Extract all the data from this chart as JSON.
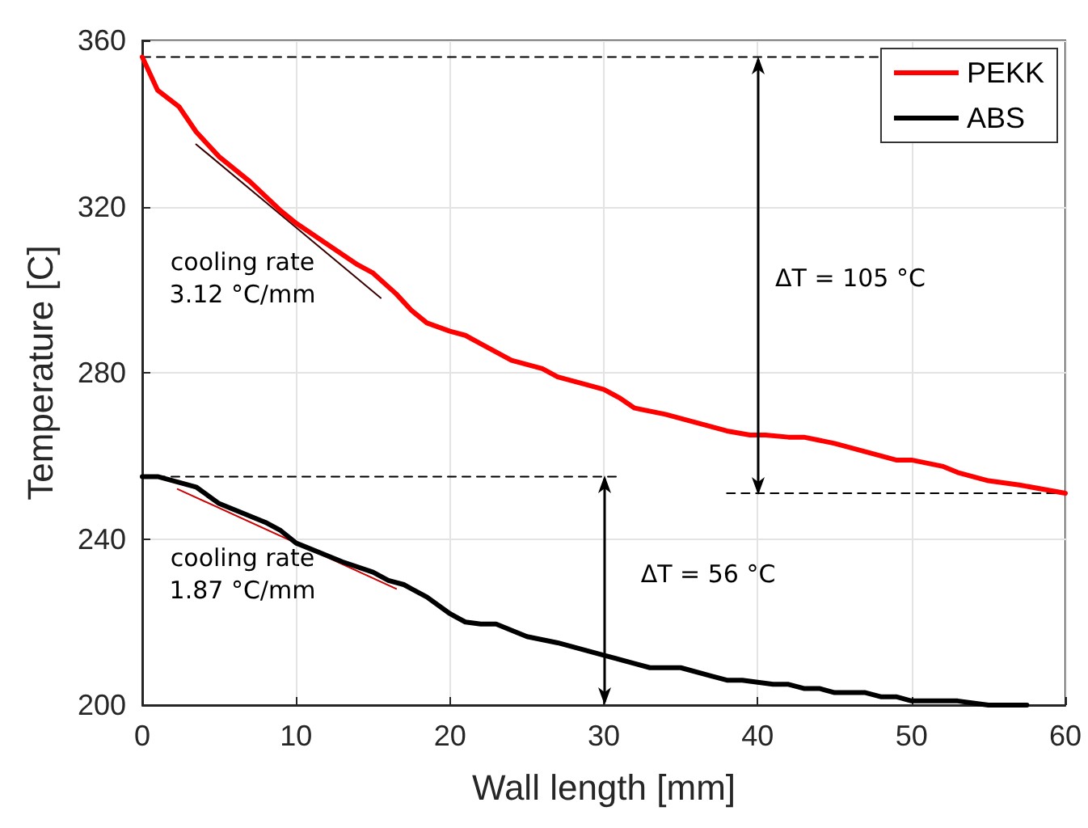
{
  "chart_data": {
    "type": "line",
    "xlabel": "Wall length [mm]",
    "ylabel": "Temperature [C]",
    "xlim": [
      0,
      60
    ],
    "xticks": [
      0,
      10,
      20,
      30,
      40,
      50,
      60
    ],
    "ylim": [
      200,
      360
    ],
    "yticks": [
      200,
      240,
      280,
      320,
      360
    ],
    "grid": true,
    "legend": "top right",
    "series": [
      {
        "name": "PEKK",
        "color": "#ff0000",
        "x": [
          0,
          1,
          2.4,
          3.5,
          5,
          7,
          9,
          10,
          12,
          14,
          15,
          16.5,
          17.5,
          18.5,
          20,
          21,
          22,
          24,
          26,
          27,
          29,
          30,
          31,
          32,
          34,
          36,
          38,
          39.5,
          40.5,
          42,
          43,
          45,
          47,
          49,
          50,
          52,
          53,
          55,
          57,
          60
        ],
        "values": [
          356,
          348,
          344,
          338,
          332,
          326,
          319,
          316,
          311,
          306,
          304,
          299,
          295,
          292,
          290,
          289,
          287,
          283,
          281,
          279,
          277,
          276,
          274,
          271.5,
          270,
          268,
          266,
          265,
          265,
          264.5,
          264.5,
          263,
          261,
          259,
          259,
          257.5,
          256,
          254,
          253,
          251
        ]
      },
      {
        "name": "ABS",
        "color": "#000000",
        "x": [
          0,
          1,
          3.5,
          5,
          8,
          9,
          10,
          12,
          13,
          15,
          16,
          17,
          18.5,
          20,
          21,
          22,
          23,
          24,
          25,
          27,
          30,
          32,
          33,
          35,
          37,
          38,
          39,
          40,
          41,
          42,
          43,
          44,
          45,
          47,
          48,
          49,
          50,
          53,
          54,
          55,
          57.5
        ],
        "values": [
          255,
          255,
          252.5,
          248.5,
          244,
          242,
          239,
          236,
          234.5,
          232,
          230,
          229,
          226,
          222,
          220,
          219.5,
          219.5,
          218,
          216.5,
          215,
          212,
          210,
          209,
          209,
          207,
          206,
          206,
          205.5,
          205,
          205,
          204,
          204,
          203,
          203,
          202,
          202,
          201,
          201,
          200.5,
          200,
          200
        ]
      },
      {
        "color": "#3a0000",
        "x": [
          3.5,
          15.5
        ],
        "values": [
          335,
          298
        ]
      },
      {
        "color": "#cc0000",
        "x": [
          2.3,
          16.5
        ],
        "values": [
          252,
          228
        ]
      },
      {
        "color": "#000000",
        "line_style": "dashed",
        "x": [
          0,
          48
        ],
        "values": [
          356,
          356
        ]
      },
      {
        "color": "#000000",
        "line_style": "dashed",
        "x": [
          0,
          31
        ],
        "values": [
          255,
          255
        ]
      },
      {
        "color": "#000000",
        "line_style": "dashed",
        "x": [
          38,
          60
        ],
        "values": [
          251,
          251
        ]
      }
    ],
    "annotations": [
      "cooling rate\n3.12 °C/mm",
      "cooling rate\n1.87 °C/mm",
      "ΔT = 105 °C",
      "ΔT = 56 °C"
    ]
  }
}
